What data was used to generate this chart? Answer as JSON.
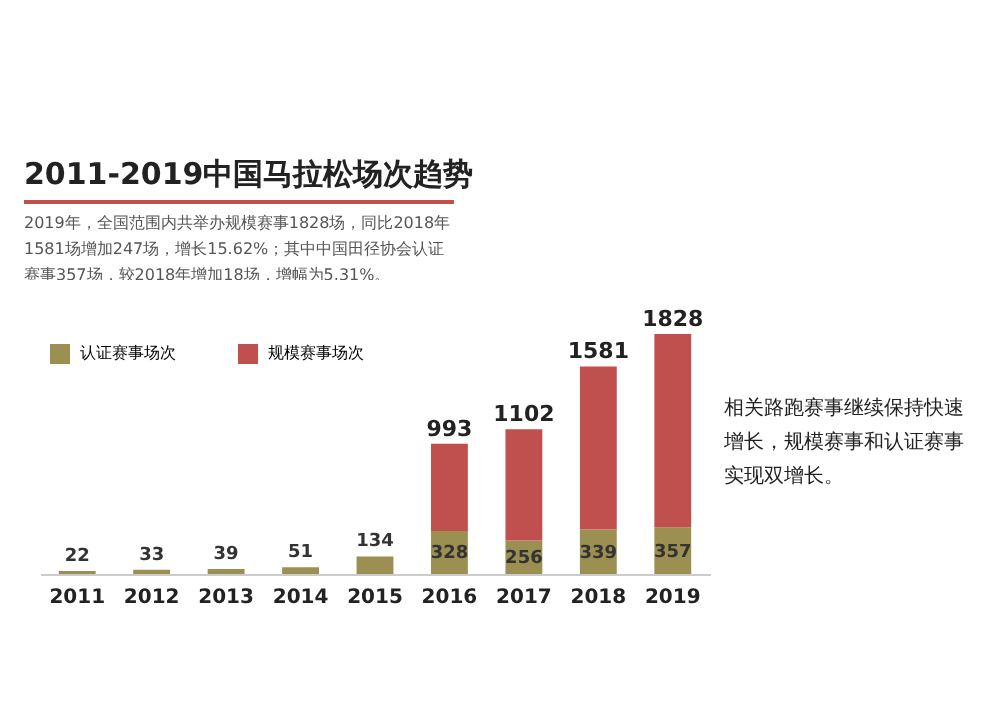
{
  "chart_data": {
    "type": "bar",
    "title": "2011-2019中国马拉松场次趋势",
    "subtitle": "2019年，全国范围内共举办规模赛事1828场，同比2018年1581场增加247场，增长15.62%；其中中国田径协会认证赛事357场，较2018年增加18场，增幅为5.31%。",
    "annotations": [
      "相关路跑赛事继续保持快速增长，规模赛事和认证赛事实现双增长。"
    ],
    "categories": [
      "2011",
      "2012",
      "2013",
      "2014",
      "2015",
      "2016",
      "2017",
      "2018",
      "2019"
    ],
    "stacked": true,
    "series": [
      {
        "name": "认证赛事场次",
        "color": "#9c8f52",
        "values": [
          22,
          33,
          39,
          51,
          134,
          328,
          256,
          339,
          357
        ],
        "value_labels": [
          "22",
          "33",
          "39",
          "51",
          "134",
          "328",
          "256",
          "339",
          "357"
        ]
      },
      {
        "name": "规模赛事场次",
        "color": "#c0504d",
        "values": [
          null,
          null,
          null,
          null,
          null,
          665,
          846,
          1242,
          1471
        ]
      }
    ],
    "totals": [
      null,
      null,
      null,
      null,
      null,
      "993",
      "1102",
      "1581",
      "1828"
    ],
    "legend": "top left",
    "tick_labels": "x"
  }
}
